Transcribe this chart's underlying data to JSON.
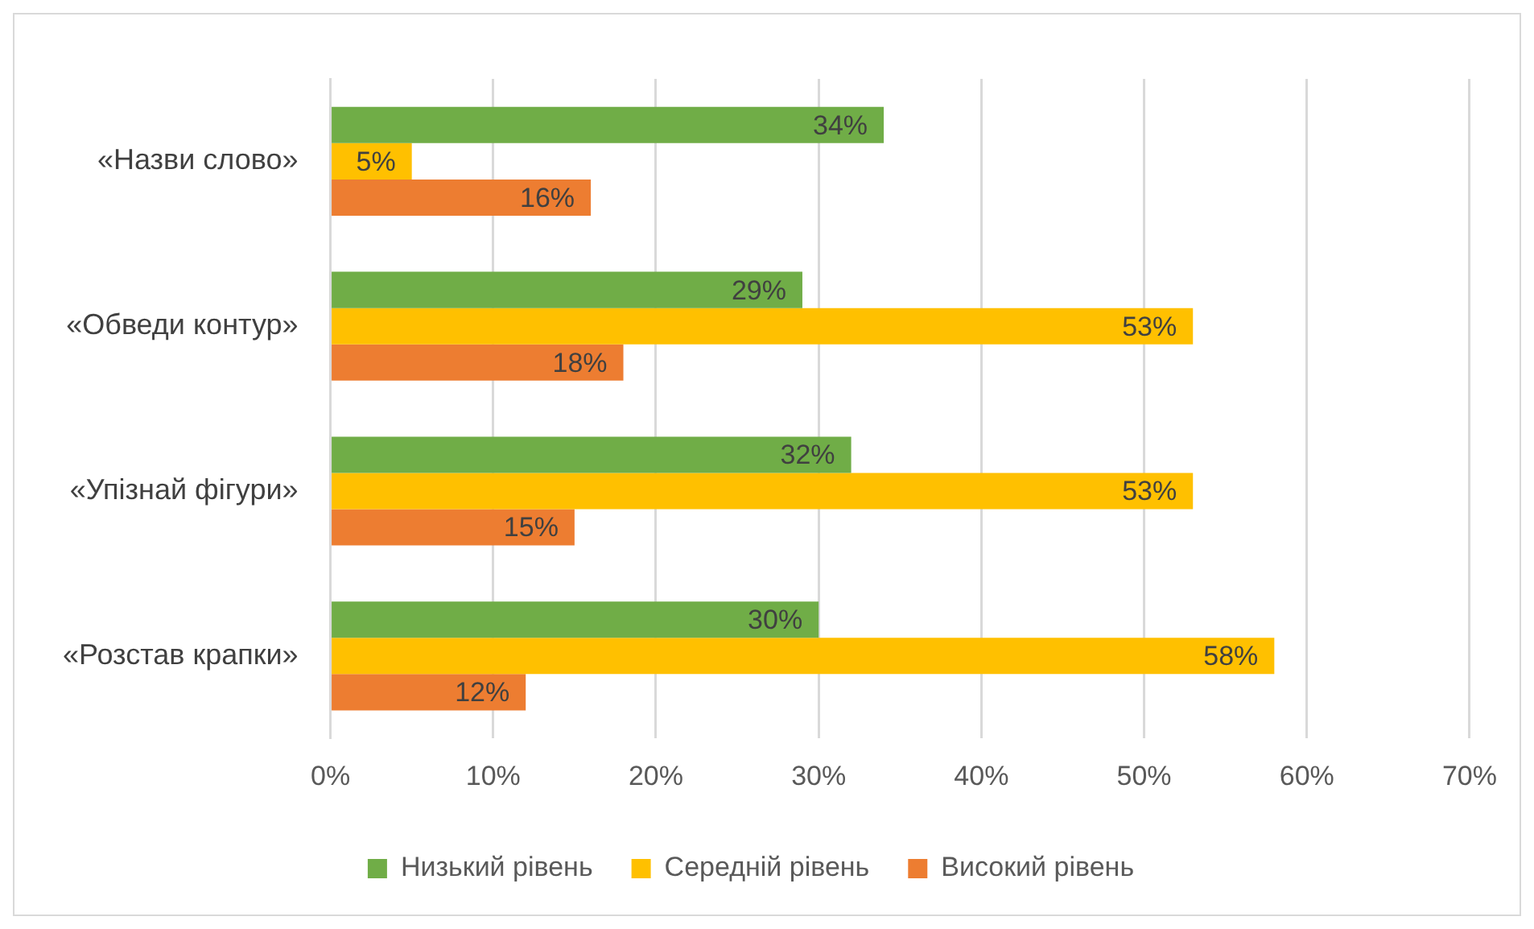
{
  "chart_data": {
    "type": "bar",
    "orientation": "horizontal",
    "categories": [
      "«Назви слово»",
      "«Обведи контур»",
      "«Упізнай фігури»",
      "«Розстав крапки»"
    ],
    "series": [
      {
        "name": "Низький рівень",
        "color": "#70ad47",
        "values": [
          34,
          29,
          32,
          30
        ],
        "value_labels": [
          "34%",
          "29%",
          "32%",
          "30%"
        ]
      },
      {
        "name": "Середній рівень",
        "color": "#ffc000",
        "values": [
          5,
          53,
          53,
          58
        ],
        "value_labels": [
          "5%",
          "53%",
          "53%",
          "58%"
        ]
      },
      {
        "name": "Високий рівень",
        "color": "#ed7d31",
        "values": [
          16,
          18,
          15,
          12
        ],
        "value_labels": [
          "16%",
          "18%",
          "15%",
          "12%"
        ]
      }
    ],
    "xlim": [
      0,
      70
    ],
    "xticks": [
      {
        "value": 0,
        "label": "0%"
      },
      {
        "value": 10,
        "label": "10%"
      },
      {
        "value": 20,
        "label": "20%"
      },
      {
        "value": 30,
        "label": "30%"
      },
      {
        "value": 40,
        "label": "40%"
      },
      {
        "value": 50,
        "label": "50%"
      },
      {
        "value": 60,
        "label": "60%"
      },
      {
        "value": 70,
        "label": "70%"
      }
    ],
    "grid": "x",
    "legend": "bottom"
  }
}
